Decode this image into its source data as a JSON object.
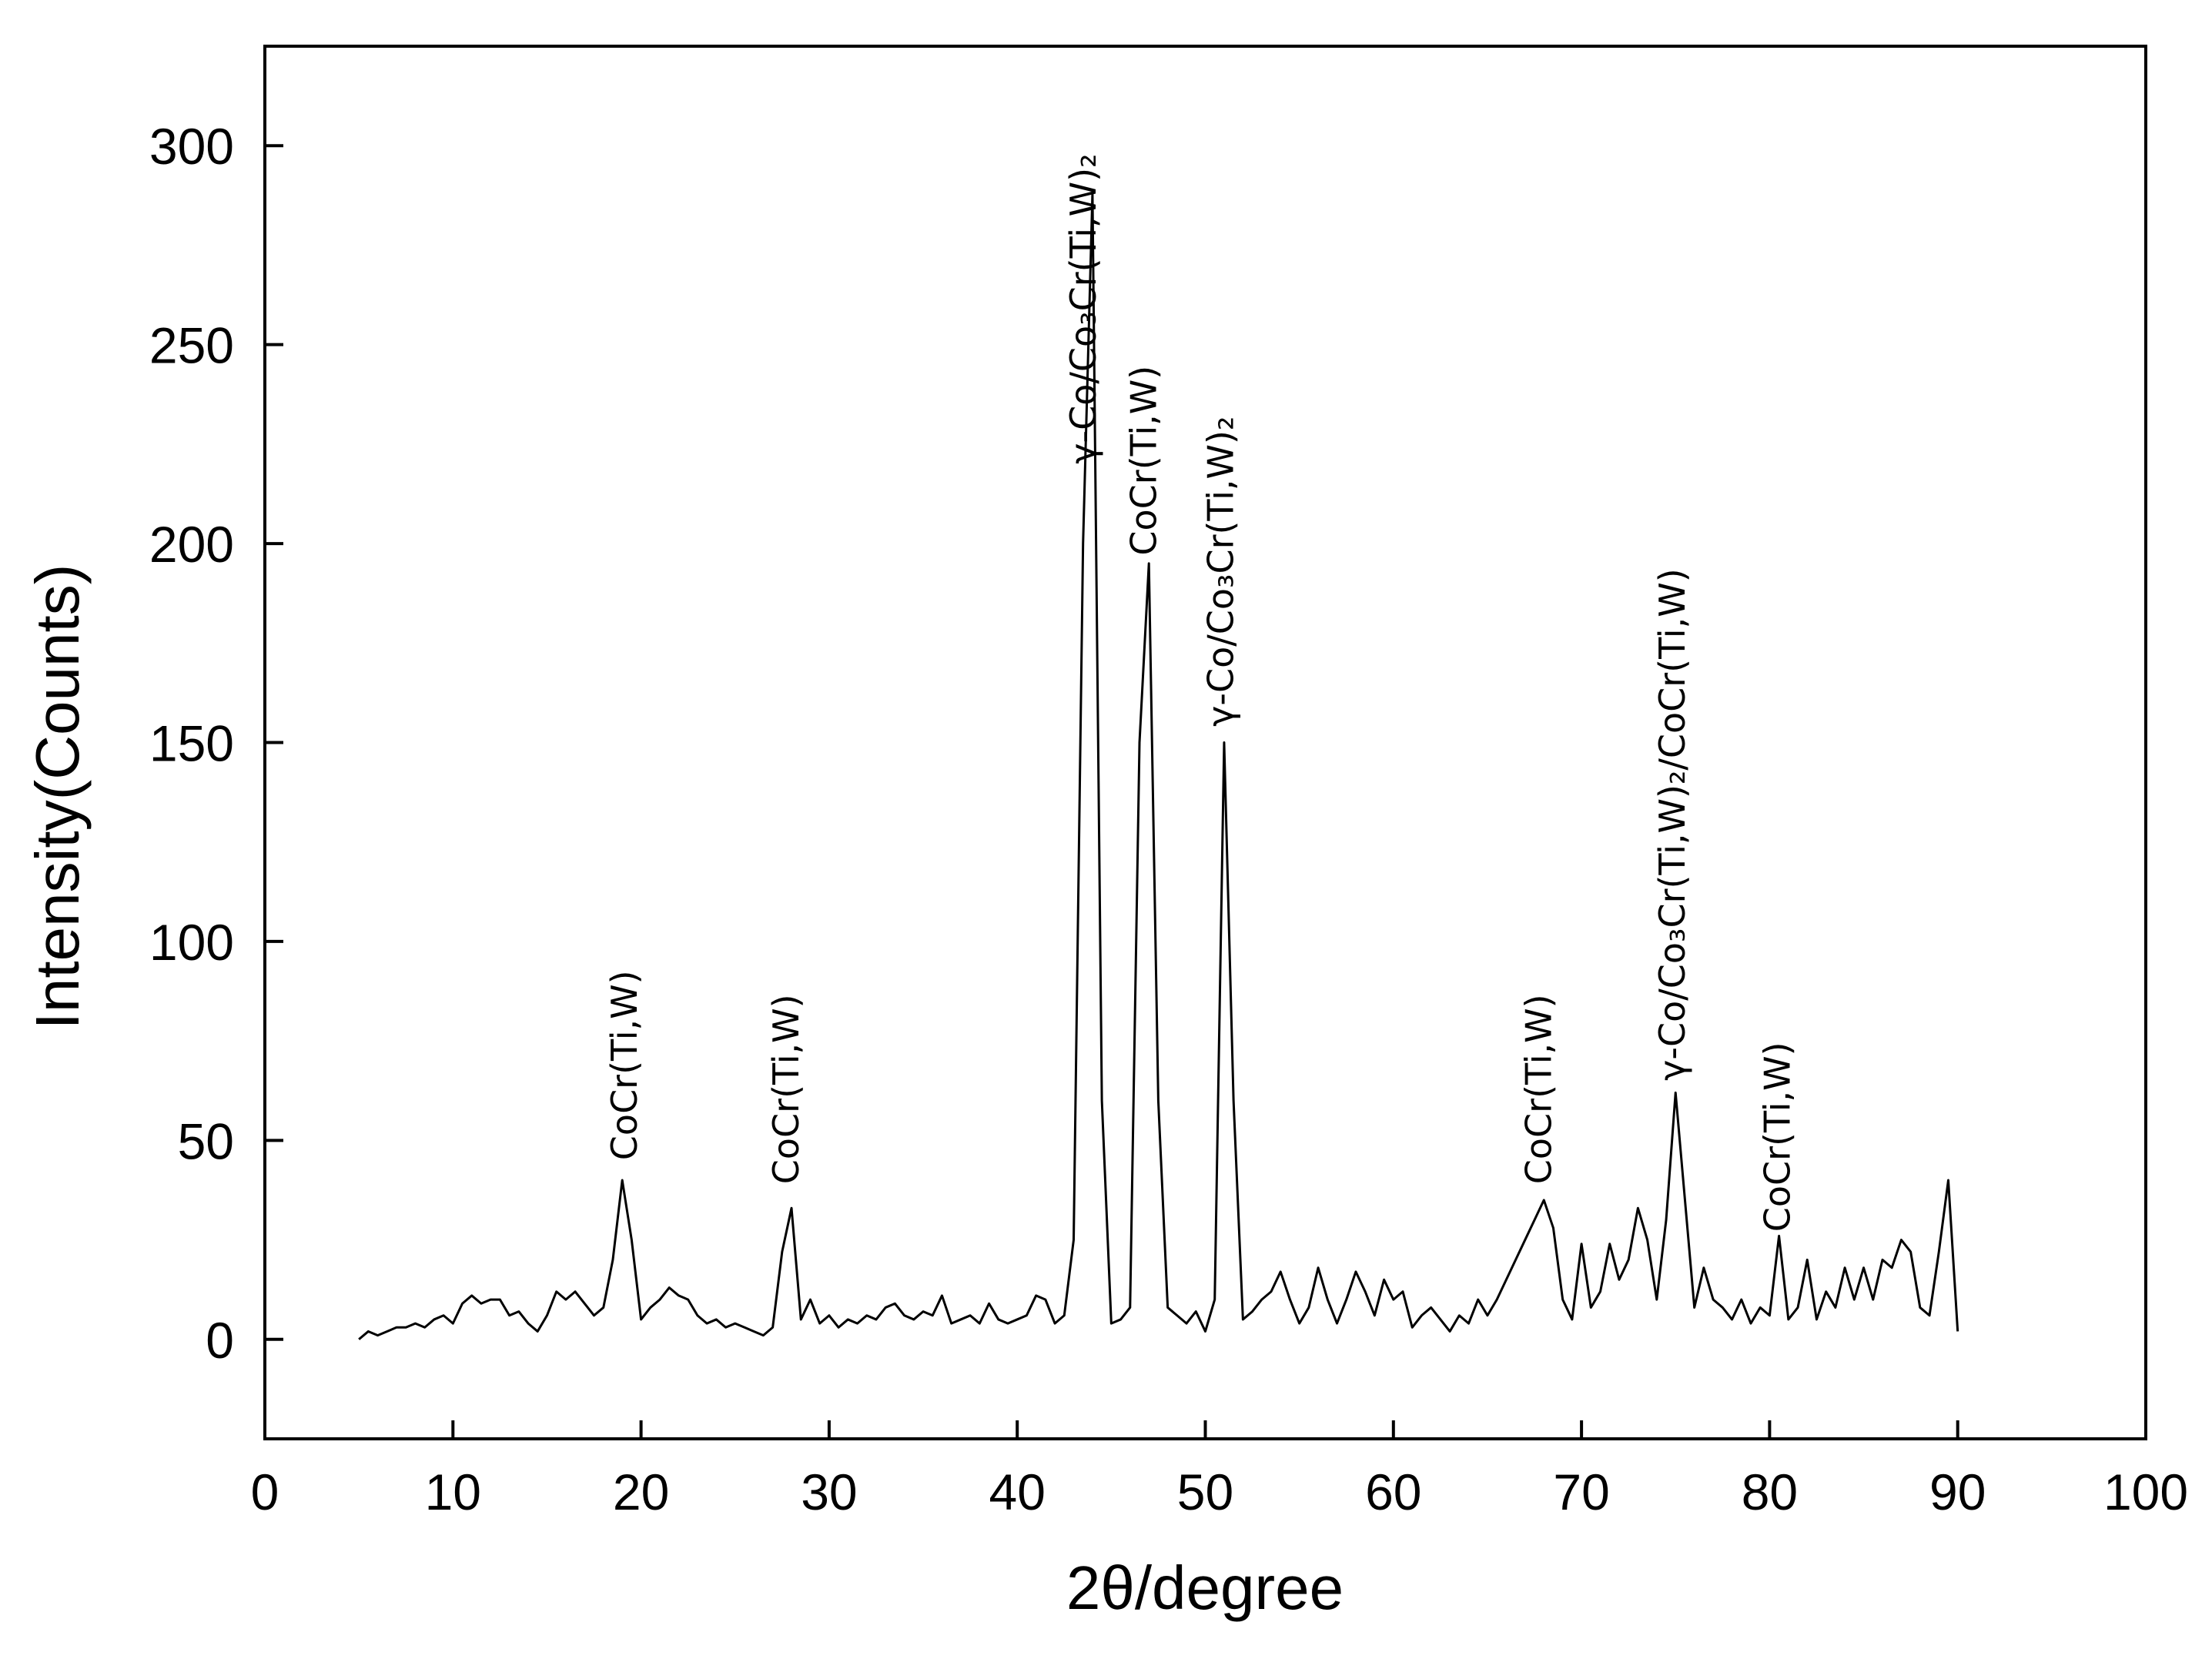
{
  "chart_data": {
    "type": "line",
    "xlabel": "2θ/degree",
    "ylabel": "Intensity(Counts)",
    "color": "#000000",
    "xlim": [
      0,
      100
    ],
    "xticks": [
      0,
      10,
      20,
      30,
      40,
      50,
      60,
      70,
      80,
      90,
      100
    ],
    "ylim": [
      -25,
      325
    ],
    "yticks": [
      0,
      50,
      100,
      150,
      200,
      250,
      300
    ],
    "x": [
      5,
      5.5,
      6,
      6.5,
      7,
      7.5,
      8,
      8.5,
      9,
      9.5,
      10,
      10.5,
      11,
      11.5,
      12,
      12.5,
      13,
      13.5,
      14,
      14.5,
      15,
      15.5,
      16,
      16.5,
      17,
      17.5,
      18,
      18.5,
      19,
      19.5,
      20,
      20.5,
      21,
      21.5,
      22,
      22.5,
      23,
      23.5,
      24,
      24.5,
      25,
      25.5,
      26,
      26.5,
      27,
      27.5,
      28,
      28.5,
      29,
      29.5,
      30,
      30.5,
      31,
      31.5,
      32,
      32.5,
      33,
      33.5,
      34,
      34.5,
      35,
      35.5,
      36,
      36.5,
      37,
      37.5,
      38,
      38.5,
      39,
      39.5,
      40,
      40.5,
      41,
      41.5,
      42,
      42.5,
      43,
      43.5,
      44,
      44.5,
      45,
      45.5,
      46,
      46.5,
      47,
      47.5,
      48,
      48.5,
      49,
      49.5,
      50,
      50.5,
      51,
      51.5,
      52,
      52.5,
      53,
      53.5,
      54,
      54.5,
      55,
      55.5,
      56,
      56.5,
      57,
      57.5,
      58,
      58.5,
      59,
      59.5,
      60,
      60.5,
      61,
      61.5,
      62,
      62.5,
      63,
      63.5,
      64,
      64.5,
      65,
      65.5,
      66,
      66.5,
      67,
      67.5,
      68,
      68.5,
      69,
      69.5,
      70,
      70.5,
      71,
      71.5,
      72,
      72.5,
      73,
      73.5,
      74,
      74.5,
      75,
      75.5,
      76,
      76.5,
      77,
      77.5,
      78,
      78.5,
      79,
      79.5,
      80,
      80.5,
      81,
      81.5,
      82,
      82.5,
      83,
      83.5,
      84,
      84.5,
      85,
      85.5,
      86,
      86.5,
      87,
      87.5,
      88,
      88.5,
      89,
      89.5,
      90
    ],
    "values": [
      0,
      2,
      1,
      2,
      3,
      3,
      4,
      3,
      5,
      6,
      4,
      9,
      11,
      9,
      10,
      10,
      6,
      7,
      4,
      2,
      6,
      12,
      10,
      12,
      9,
      6,
      8,
      20,
      40,
      25,
      5,
      8,
      10,
      13,
      11,
      10,
      6,
      4,
      5,
      3,
      4,
      3,
      2,
      1,
      3,
      22,
      33,
      5,
      10,
      4,
      6,
      3,
      5,
      4,
      6,
      5,
      8,
      9,
      6,
      5,
      7,
      6,
      11,
      4,
      5,
      6,
      4,
      9,
      5,
      4,
      5,
      6,
      11,
      10,
      4,
      6,
      25,
      200,
      288,
      60,
      4,
      5,
      8,
      150,
      195,
      60,
      8,
      6,
      4,
      7,
      2,
      10,
      150,
      60,
      5,
      7,
      10,
      12,
      17,
      10,
      4,
      8,
      18,
      10,
      4,
      10,
      17,
      12,
      6,
      15,
      10,
      12,
      3,
      6,
      8,
      5,
      2,
      6,
      4,
      10,
      6,
      10,
      15,
      20,
      25,
      30,
      35,
      28,
      10,
      5,
      24,
      8,
      12,
      24,
      15,
      20,
      33,
      25,
      10,
      30,
      62,
      35,
      8,
      18,
      10,
      8,
      5,
      10,
      4,
      8,
      6,
      26,
      5,
      8,
      20,
      5,
      12,
      8,
      18,
      10,
      18,
      10,
      20,
      18,
      25,
      22,
      8,
      6,
      22,
      40,
      2
    ],
    "annotations": [
      {
        "text": "CoCr(Ti,W)",
        "x": 19.2,
        "y": 45
      },
      {
        "text": "CoCr(Ti,W)",
        "x": 27.8,
        "y": 39
      },
      {
        "text": "γ-Co/Co₃Cr(Ti,W)₂",
        "x": 43.6,
        "y": 220
      },
      {
        "text": "CoCr(Ti,W)",
        "x": 46.8,
        "y": 197
      },
      {
        "text": "γ-Co/Co₃Cr(Ti,W)₂",
        "x": 50.9,
        "y": 154
      },
      {
        "text": "CoCr(Ti,W)",
        "x": 67.8,
        "y": 39
      },
      {
        "text": "γ-Co/Co₃Cr(Ti,W)₂/CoCr(Ti,W)",
        "x": 74.9,
        "y": 65
      },
      {
        "text": "CoCr(Ti,W)",
        "x": 80.5,
        "y": 27
      }
    ]
  }
}
